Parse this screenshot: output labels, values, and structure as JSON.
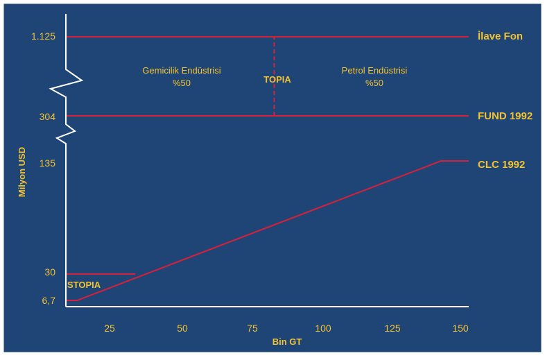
{
  "colors": {
    "background": "#1f4577",
    "frame": "#ffffff",
    "axis": "#ffffff",
    "series": "#d8203a",
    "text": "#f2c230"
  },
  "chart_data": {
    "type": "line",
    "xlabel": "Bin GT",
    "ylabel": "Milyon USD",
    "xlim": [
      5,
      150
    ],
    "x_ticks": [
      "25",
      "50",
      "75",
      "100",
      "125",
      "150"
    ],
    "y_ticks": [
      "6,7",
      "30",
      "135",
      "304",
      "1.125"
    ],
    "y_axis_breaks": 2,
    "grid": false,
    "series": [
      {
        "name": "İlave Fon",
        "points": [
          [
            5,
            1125
          ],
          [
            150,
            1125
          ]
        ]
      },
      {
        "name": "FUND 1992",
        "points": [
          [
            5,
            304
          ],
          [
            150,
            304
          ]
        ]
      },
      {
        "name": "CLC 1992",
        "points": [
          [
            5,
            6.7
          ],
          [
            9,
            6.7
          ],
          [
            140,
            135
          ],
          [
            150,
            135
          ]
        ]
      },
      {
        "name": "",
        "points": [
          [
            5,
            30
          ],
          [
            30,
            30
          ]
        ]
      }
    ],
    "dashed_marker": {
      "x": 80,
      "from": 304,
      "to": 1125
    },
    "annotations": {
      "shipping": "Gemicilik Endüstrisi",
      "shipping_share": "%50",
      "topia": "TOPIA",
      "oil": "Petrol Endüstrisi",
      "oil_share": "%50",
      "stopia": "STOPIA"
    }
  }
}
